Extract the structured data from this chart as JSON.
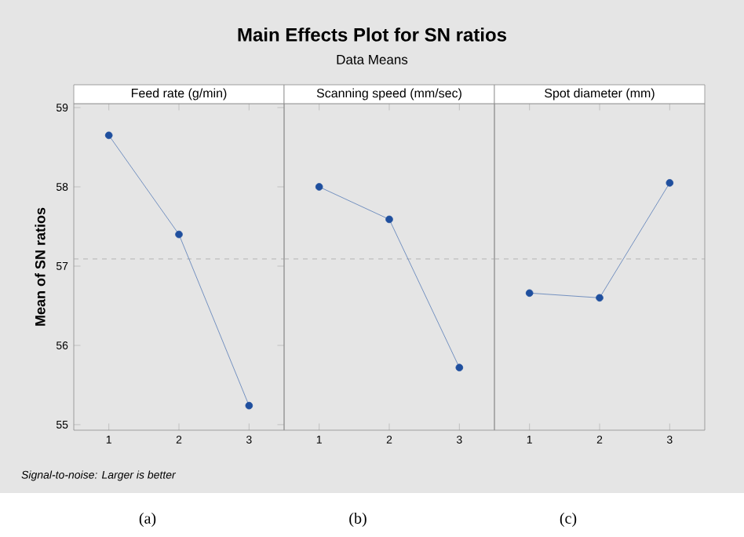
{
  "chart_data": [
    {
      "type": "other",
      "title": "Main Effects Plot for SN ratios",
      "subtitle": "Data Means",
      "annotations": [
        "Signal-to-noise: Larger is better"
      ]
    },
    {
      "type": "line",
      "title": "Feed rate (g/min)",
      "ylabel": "Mean of SN ratios",
      "x": [
        1,
        2,
        3
      ],
      "values": [
        58.65,
        57.4,
        55.24
      ],
      "color": "#1f4f9e",
      "marker": "circle",
      "xlim": [
        0.5,
        3.5
      ],
      "ylim": [
        54.93,
        59.05
      ],
      "xticks": [
        1,
        2,
        3
      ],
      "yticks": [
        55,
        56,
        57,
        58,
        59
      ],
      "ref_lines": [
        {
          "axis": "y",
          "value": 57.09,
          "color": "#a6a6a6",
          "line_style": "dashed"
        }
      ],
      "annotations": [
        "(a)"
      ]
    },
    {
      "type": "line",
      "title": "Scanning speed (mm/sec)",
      "x": [
        1,
        2,
        3
      ],
      "values": [
        58.0,
        57.59,
        55.72
      ],
      "color": "#1f4f9e",
      "marker": "circle",
      "xlim": [
        0.5,
        3.5
      ],
      "ylim": [
        54.93,
        59.05
      ],
      "xticks": [
        1,
        2,
        3
      ],
      "tick_labels": "x",
      "ref_lines": [
        {
          "axis": "y",
          "value": 57.09,
          "color": "#a6a6a6",
          "line_style": "dashed"
        }
      ],
      "annotations": [
        "(b)"
      ]
    },
    {
      "type": "line",
      "title": "Spot diameter (mm)",
      "x": [
        1,
        2,
        3
      ],
      "values": [
        56.66,
        56.6,
        58.05
      ],
      "color": "#1f4f9e",
      "marker": "circle",
      "xlim": [
        0.5,
        3.5
      ],
      "ylim": [
        54.93,
        59.05
      ],
      "xticks": [
        1,
        2,
        3
      ],
      "tick_labels": "x",
      "ref_lines": [
        {
          "axis": "y",
          "value": 57.09,
          "color": "#a6a6a6",
          "line_style": "dashed"
        }
      ],
      "annotations": [
        "(c)"
      ]
    }
  ]
}
